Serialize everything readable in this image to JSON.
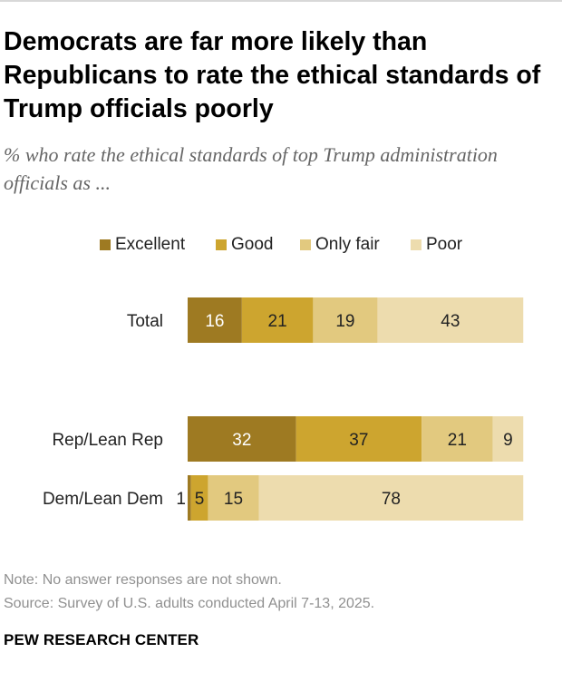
{
  "title": "Democrats are far more likely than Republicans to rate the ethical standards of Trump officials poorly",
  "subtitle": "% who rate the ethical standards of top Trump administration officials as ...",
  "note": "Note: No answer responses are not shown.",
  "source": "Source: Survey of U.S. adults conducted April 7-13, 2025.",
  "footer": "PEW RESEARCH CENTER",
  "colors": {
    "excellent": "#9e7a22",
    "good": "#cda52f",
    "only_fair": "#e2c97f",
    "poor": "#eddcae",
    "label_dark_bg": "#ffffff",
    "label_light_bg": "#222222"
  },
  "chart_data": {
    "type": "bar",
    "orientation": "horizontal",
    "stacked": true,
    "title": "Democrats are far more likely than Republicans to rate the ethical standards of Trump officials poorly",
    "xlabel": "",
    "ylabel": "",
    "xlim": [
      0,
      100
    ],
    "legend_position": "top",
    "categories": [
      "Total",
      "Rep/Lean Rep",
      "Dem/Lean Dem"
    ],
    "series": [
      {
        "name": "Excellent",
        "values": [
          16,
          32,
          1
        ]
      },
      {
        "name": "Good",
        "values": [
          21,
          37,
          5
        ]
      },
      {
        "name": "Only fair",
        "values": [
          19,
          21,
          15
        ]
      },
      {
        "name": "Poor",
        "values": [
          43,
          9,
          78
        ]
      }
    ]
  }
}
